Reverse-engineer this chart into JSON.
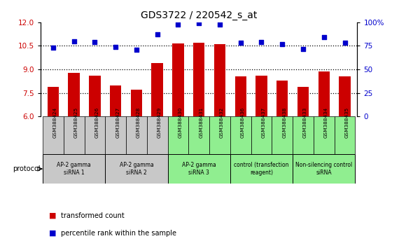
{
  "title": "GDS3722 / 220542_s_at",
  "samples": [
    "GSM388424",
    "GSM388425",
    "GSM388426",
    "GSM388427",
    "GSM388428",
    "GSM388429",
    "GSM388430",
    "GSM388431",
    "GSM388432",
    "GSM388436",
    "GSM388437",
    "GSM388438",
    "GSM388433",
    "GSM388434",
    "GSM388435"
  ],
  "transformed_count": [
    7.9,
    8.8,
    8.6,
    8.0,
    7.7,
    9.4,
    10.65,
    10.7,
    10.6,
    8.55,
    8.6,
    8.3,
    7.9,
    8.85,
    8.55
  ],
  "percentile_rank": [
    73,
    80,
    79,
    74,
    71,
    87,
    98,
    99,
    98,
    78,
    79,
    77,
    72,
    84,
    78
  ],
  "ylim_left": [
    6,
    12
  ],
  "ylim_right": [
    0,
    100
  ],
  "yticks_left": [
    6,
    7.5,
    9,
    10.5,
    12
  ],
  "yticks_right": [
    0,
    25,
    50,
    75,
    100
  ],
  "bar_color": "#cc0000",
  "dot_color": "#0000cc",
  "groups": [
    {
      "label": "AP-2 gamma\nsiRNA 1",
      "indices": [
        0,
        1,
        2
      ],
      "color": "#c8c8c8"
    },
    {
      "label": "AP-2 gamma\nsiRNA 2",
      "indices": [
        3,
        4,
        5
      ],
      "color": "#c8c8c8"
    },
    {
      "label": "AP-2 gamma\nsiRNA 3",
      "indices": [
        6,
        7,
        8
      ],
      "color": "#90ee90"
    },
    {
      "label": "control (transfection\nreagent)",
      "indices": [
        9,
        10,
        11
      ],
      "color": "#90ee90"
    },
    {
      "label": "Non-silencing control\nsiRNA",
      "indices": [
        12,
        13,
        14
      ],
      "color": "#90ee90"
    }
  ],
  "protocol_label": "protocol",
  "legend_bar_label": "transformed count",
  "legend_dot_label": "percentile rank within the sample",
  "background_color": "#ffffff",
  "tick_label_color_left": "#cc0000",
  "tick_label_color_right": "#0000cc",
  "dotted_lines": [
    7.5,
    9,
    10.5
  ]
}
